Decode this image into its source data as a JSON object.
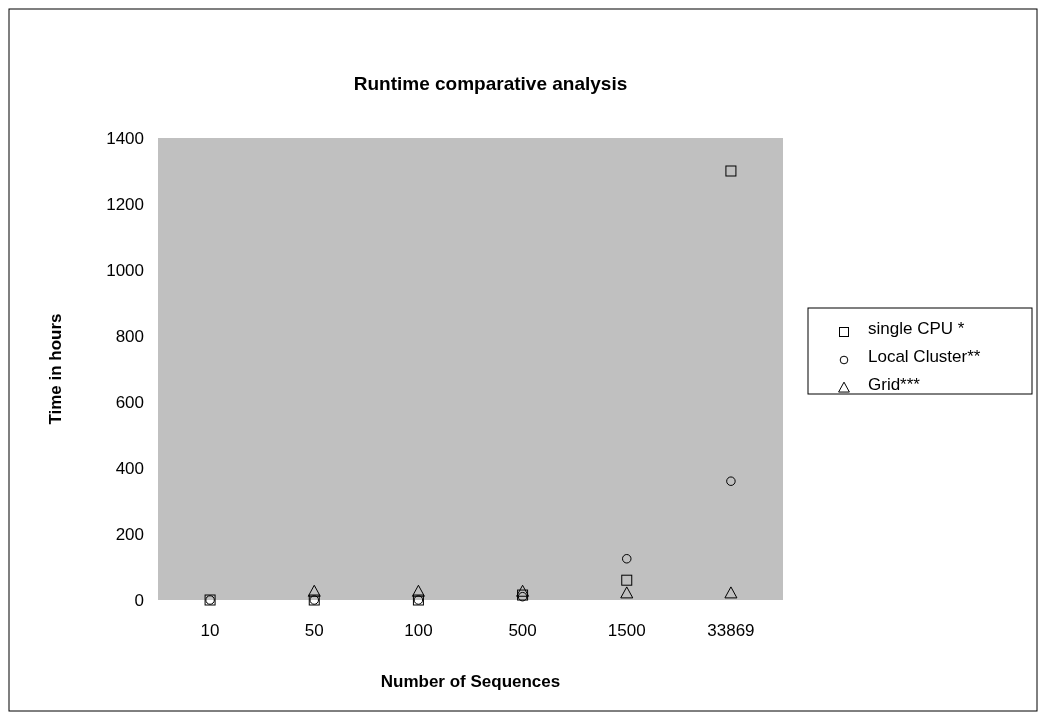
{
  "chart_data": {
    "type": "scatter",
    "title": "Runtime comparative analysis",
    "xlabel": "Number of Sequences",
    "ylabel": "Time in hours",
    "categories": [
      "10",
      "50",
      "100",
      "500",
      "1500",
      "33869"
    ],
    "ylim": [
      0,
      1400
    ],
    "yticks": [
      0,
      200,
      400,
      600,
      800,
      1000,
      1200,
      1400
    ],
    "grid": false,
    "legend": "right",
    "series": [
      {
        "name": "single CPU *",
        "color": "#000000",
        "marker": "square",
        "values": [
          0,
          0,
          0,
          15,
          60,
          1300
        ]
      },
      {
        "name": "Local Cluster**",
        "color": "#000000",
        "marker": "circle",
        "values": [
          0,
          0,
          0,
          10,
          125,
          360
        ]
      },
      {
        "name": "Grid***",
        "color": "#000000",
        "marker": "triangle",
        "values": [
          null,
          25,
          25,
          25,
          20,
          20
        ]
      }
    ]
  }
}
